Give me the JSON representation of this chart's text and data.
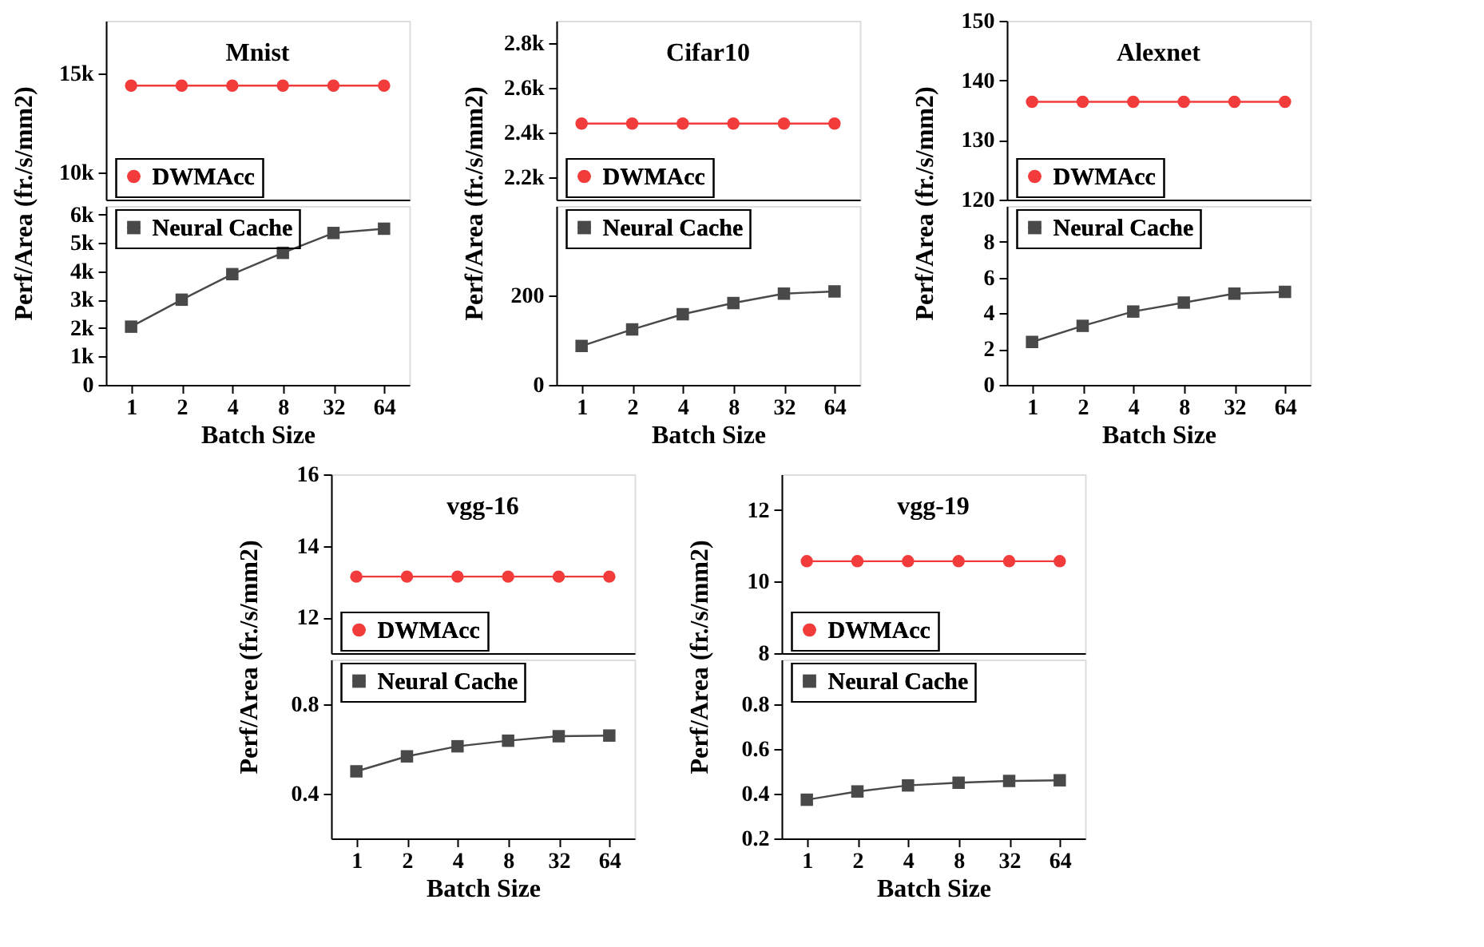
{
  "chart_data": [
    {
      "type": "line",
      "title": "Mnist",
      "categories": [
        "1",
        "2",
        "4",
        "8",
        "32",
        "64"
      ],
      "ylim": [
        8600,
        17700
      ],
      "yticks": [
        {
          "value": 10000,
          "label": "10k"
        },
        {
          "value": 15000,
          "label": "15k"
        }
      ],
      "tick_labels": "y",
      "grid": false,
      "legend": "bottom left",
      "line_style": "solid",
      "series": [
        {
          "name": "DWMAcc",
          "color": "#f23c3c",
          "marker": "circle",
          "values": [
            14400,
            14400,
            14400,
            14400,
            14400,
            14400
          ]
        }
      ]
    },
    {
      "type": "line",
      "xlabel": "Batch Size",
      "ylabel": "Perf/Area (fr./s/mm2)",
      "categories": [
        "1",
        "2",
        "4",
        "8",
        "32",
        "64"
      ],
      "ylim": [
        0,
        6300
      ],
      "yticks": [
        0,
        {
          "value": 1000,
          "label": "1k"
        },
        {
          "value": 2000,
          "label": "2k"
        },
        {
          "value": 3000,
          "label": "3k"
        },
        {
          "value": 4000,
          "label": "4k"
        },
        {
          "value": 5000,
          "label": "5k"
        },
        {
          "value": 6000,
          "label": "6k"
        }
      ],
      "grid": false,
      "legend": "top left",
      "line_style": "solid",
      "series": [
        {
          "name": "Neural Cache",
          "color": "#494949",
          "marker": "square",
          "values": [
            2050,
            3000,
            3900,
            4650,
            5350,
            5500
          ]
        }
      ]
    },
    {
      "type": "line",
      "title": "Cifar10",
      "categories": [
        "1",
        "2",
        "4",
        "8",
        "32",
        "64"
      ],
      "ylim": [
        2100,
        2900
      ],
      "yticks": [
        {
          "value": 2200,
          "label": "2.2k"
        },
        {
          "value": 2400,
          "label": "2.4k"
        },
        {
          "value": 2600,
          "label": "2.6k"
        },
        {
          "value": 2800,
          "label": "2.8k"
        }
      ],
      "tick_labels": "y",
      "grid": false,
      "legend": "bottom left",
      "line_style": "solid",
      "series": [
        {
          "name": "DWMAcc",
          "color": "#f23c3c",
          "marker": "circle",
          "values": [
            2440,
            2440,
            2440,
            2440,
            2440,
            2440
          ]
        }
      ]
    },
    {
      "type": "line",
      "xlabel": "Batch Size",
      "ylabel": "Perf/Area (fr./s/mm2)",
      "categories": [
        "1",
        "2",
        "4",
        "8",
        "32",
        "64"
      ],
      "ylim": [
        0,
        400
      ],
      "yticks": [
        0,
        200
      ],
      "grid": false,
      "legend": "top left",
      "line_style": "solid",
      "series": [
        {
          "name": "Neural Cache",
          "color": "#494949",
          "marker": "square",
          "values": [
            87,
            124,
            158,
            183,
            204,
            209
          ]
        }
      ]
    },
    {
      "type": "line",
      "title": "Alexnet",
      "categories": [
        "1",
        "2",
        "4",
        "8",
        "32",
        "64"
      ],
      "ylim": [
        120,
        150
      ],
      "yticks": [
        120,
        130,
        140,
        150
      ],
      "tick_labels": "y",
      "grid": false,
      "legend": "bottom left",
      "line_style": "solid",
      "series": [
        {
          "name": "DWMAcc",
          "color": "#f23c3c",
          "marker": "circle",
          "values": [
            136.4,
            136.4,
            136.4,
            136.4,
            136.4,
            136.4
          ]
        }
      ]
    },
    {
      "type": "line",
      "xlabel": "Batch Size",
      "ylabel": "Perf/Area (fr./s/mm2)",
      "categories": [
        "1",
        "2",
        "4",
        "8",
        "32",
        "64"
      ],
      "ylim": [
        0,
        10
      ],
      "yticks": [
        0,
        2,
        4,
        6,
        8
      ],
      "grid": false,
      "legend": "top left",
      "line_style": "solid",
      "series": [
        {
          "name": "Neural Cache",
          "color": "#494949",
          "marker": "square",
          "values": [
            2.4,
            3.3,
            4.1,
            4.6,
            5.1,
            5.2
          ]
        }
      ]
    },
    {
      "type": "line",
      "title": "vgg-16",
      "categories": [
        "1",
        "2",
        "4",
        "8",
        "32",
        "64"
      ],
      "ylim": [
        11,
        16
      ],
      "yticks": [
        12,
        14,
        16
      ],
      "tick_labels": "y",
      "grid": false,
      "legend": "bottom left",
      "line_style": "solid",
      "series": [
        {
          "name": "DWMAcc",
          "color": "#f23c3c",
          "marker": "circle",
          "values": [
            13.14,
            13.14,
            13.14,
            13.14,
            13.14,
            13.14
          ]
        }
      ]
    },
    {
      "type": "line",
      "xlabel": "Batch Size",
      "ylabel": "Perf/Area (fr./s/mm2)",
      "categories": [
        "1",
        "2",
        "4",
        "8",
        "32",
        "64"
      ],
      "ylim": [
        0.2,
        1.0
      ],
      "yticks": [
        0.4,
        0.8
      ],
      "grid": false,
      "legend": "top left",
      "line_style": "solid",
      "series": [
        {
          "name": "Neural Cache",
          "color": "#494949",
          "marker": "square",
          "values": [
            0.5,
            0.567,
            0.612,
            0.637,
            0.657,
            0.66
          ]
        }
      ]
    },
    {
      "type": "line",
      "title": "vgg-19",
      "categories": [
        "1",
        "2",
        "4",
        "8",
        "32",
        "64"
      ],
      "ylim": [
        8,
        13
      ],
      "yticks": [
        8,
        10,
        12
      ],
      "tick_labels": "y",
      "grid": false,
      "legend": "bottom left",
      "line_style": "solid",
      "series": [
        {
          "name": "DWMAcc",
          "color": "#f23c3c",
          "marker": "circle",
          "values": [
            10.57,
            10.57,
            10.57,
            10.57,
            10.57,
            10.57
          ]
        }
      ]
    },
    {
      "type": "line",
      "xlabel": "Batch Size",
      "ylabel": "Perf/Area (fr./s/mm2)",
      "categories": [
        "1",
        "2",
        "4",
        "8",
        "32",
        "64"
      ],
      "ylim": [
        0.2,
        1.0
      ],
      "yticks": [
        0.2,
        0.4,
        0.6,
        0.8
      ],
      "grid": false,
      "legend": "top left",
      "line_style": "solid",
      "series": [
        {
          "name": "Neural Cache",
          "color": "#494949",
          "marker": "square",
          "values": [
            0.373,
            0.41,
            0.437,
            0.449,
            0.457,
            0.46
          ]
        }
      ]
    }
  ]
}
